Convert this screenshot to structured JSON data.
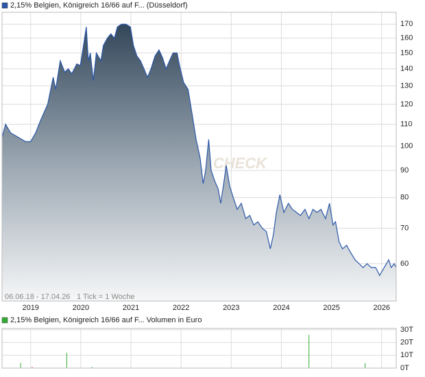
{
  "chart_data": [
    {
      "type": "area",
      "legend_position": "top-left",
      "log_scale": true,
      "grid": true,
      "watermark": "CHECK",
      "date_range": "06.06.18 - 17.04.26",
      "tick_info": "1 Tick = 1 Woche",
      "xlim": [
        2018.43,
        2026.29
      ],
      "xticks": [
        2019,
        2020,
        2021,
        2022,
        2023,
        2024,
        2025,
        2026
      ],
      "ylim": [
        51,
        179
      ],
      "yticks": [
        60,
        70,
        80,
        90,
        100,
        110,
        120,
        130,
        140,
        150,
        160,
        170
      ],
      "x": [
        2018.43,
        2018.5,
        2018.6,
        2018.75,
        2018.9,
        2019.0,
        2019.1,
        2019.2,
        2019.34,
        2019.45,
        2019.5,
        2019.59,
        2019.68,
        2019.75,
        2019.82,
        2019.92,
        2019.99,
        2020.04,
        2020.11,
        2020.15,
        2020.19,
        2020.25,
        2020.31,
        2020.4,
        2020.45,
        2020.53,
        2020.6,
        2020.67,
        2020.73,
        2020.81,
        2020.9,
        2020.99,
        2021.05,
        2021.12,
        2021.19,
        2021.26,
        2021.33,
        2021.4,
        2021.48,
        2021.56,
        2021.63,
        2021.7,
        2021.77,
        2021.84,
        2021.92,
        2021.97,
        2022.05,
        2022.14,
        2022.22,
        2022.3,
        2022.38,
        2022.44,
        2022.49,
        2022.55,
        2022.6,
        2022.67,
        2022.74,
        2022.79,
        2022.85,
        2022.9,
        2022.97,
        2023.04,
        2023.12,
        2023.2,
        2023.29,
        2023.37,
        2023.45,
        2023.53,
        2023.62,
        2023.7,
        2023.78,
        2023.84,
        2023.9,
        2023.97,
        2024.05,
        2024.14,
        2024.22,
        2024.3,
        2024.38,
        2024.47,
        2024.55,
        2024.63,
        2024.71,
        2024.79,
        2024.88,
        2024.96,
        2025.03,
        2025.08,
        2025.15,
        2025.22,
        2025.3,
        2025.38,
        2025.47,
        2025.55,
        2025.63,
        2025.71,
        2025.79,
        2025.88,
        2025.96,
        2026.05,
        2026.14,
        2026.19,
        2026.25,
        2026.29
      ],
      "series": [
        {
          "name": "2,15% Belgien, Königreich 16/66 auf F... (Düsseldorf)",
          "color": "#2b57a8",
          "values": [
            104,
            110,
            106,
            104,
            102,
            102,
            106,
            112,
            120,
            135,
            128,
            145,
            138,
            140,
            137,
            143,
            142,
            152,
            168,
            145,
            150,
            133,
            150,
            145,
            155,
            160,
            163,
            160,
            168,
            170,
            170,
            168,
            155,
            148,
            145,
            140,
            135,
            140,
            148,
            152,
            147,
            140,
            145,
            150,
            150,
            142,
            132,
            128,
            115,
            103,
            95,
            85,
            90,
            103,
            90,
            86,
            83,
            78,
            85,
            92,
            84,
            80,
            76,
            78,
            73,
            74,
            71,
            72,
            70,
            69,
            64,
            68,
            75,
            81,
            75,
            78,
            76,
            75,
            74,
            76,
            73,
            76,
            75,
            76,
            73,
            78,
            71,
            72,
            66,
            64,
            65,
            63,
            61,
            60,
            59,
            60,
            59,
            59,
            57,
            59,
            61,
            59,
            60,
            59
          ]
        }
      ]
    },
    {
      "type": "bar",
      "legend_position": "top-left",
      "grid": true,
      "xlim": [
        2018.43,
        2026.29
      ],
      "xticks": [
        2019,
        2020,
        2021,
        2022,
        2023,
        2024,
        2025,
        2026
      ],
      "ylim": [
        0,
        31
      ],
      "yticks": [
        {
          "value": 0,
          "label": "0T"
        },
        {
          "value": 10,
          "label": "10T"
        },
        {
          "value": 20,
          "label": "20T"
        },
        {
          "value": 30,
          "label": "30T"
        }
      ],
      "x": [
        2018.8,
        2019.03,
        2019.72,
        2020.22,
        2024.55,
        2025.67
      ],
      "series": [
        {
          "name": "2,15% Belgien, Königreich 16/66 auf F... Volumen in Euro",
          "color": "#33aa33",
          "colors": [
            "#33aa33",
            "#dd3333",
            "#33aa33",
            "#33aa33",
            "#33aa33",
            "#33aa33"
          ],
          "values": [
            4,
            1,
            12,
            1,
            26,
            4
          ]
        }
      ]
    }
  ]
}
